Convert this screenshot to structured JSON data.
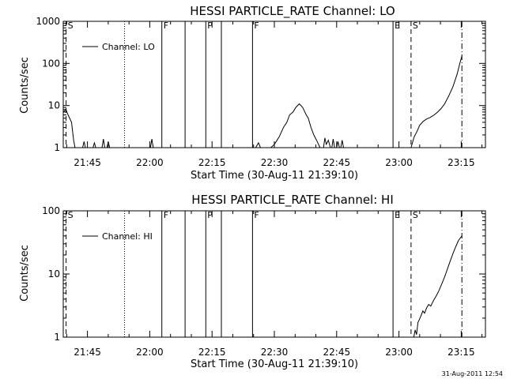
{
  "footer": "31-Aug-2011 12:54",
  "chart_data": [
    {
      "type": "line",
      "title": "HESSI PARTICLE_RATE Channel: LO",
      "xlabel": "Start Time (30-Aug-11 21:39:10)",
      "ylabel": "Counts/sec",
      "y_scale": "log",
      "ylim": [
        1,
        1000
      ],
      "xlim": [
        "21:39:10",
        "23:20:50"
      ],
      "x_ticks": [
        "21:45",
        "22:00",
        "22:15",
        "22:30",
        "22:45",
        "23:00",
        "23:15"
      ],
      "y_ticks": [
        "1",
        "10",
        "100",
        "1000"
      ],
      "legend": {
        "position": "top-left",
        "entries": [
          "Channel: LO"
        ]
      },
      "markers": [
        {
          "time": "21:39:51",
          "label": "S",
          "style": "dashed"
        },
        {
          "time": "21:53:55",
          "label": "",
          "style": "dotted"
        },
        {
          "time": "22:02:55",
          "label": "F",
          "style": "solid"
        },
        {
          "time": "22:08:30",
          "label": "",
          "style": "solid"
        },
        {
          "time": "22:13:30",
          "label": "P",
          "style": "solid"
        },
        {
          "time": "22:17:15",
          "label": "",
          "style": "solid"
        },
        {
          "time": "22:24:45",
          "label": "F",
          "style": "solid"
        },
        {
          "time": "22:58:35",
          "label": "E",
          "style": "solid"
        },
        {
          "time": "23:02:55",
          "label": "S",
          "style": "dashed"
        },
        {
          "time": "23:15:10",
          "label": "",
          "style": "dashdot"
        }
      ],
      "series": [
        {
          "name": "Channel: LO",
          "segments": [
            [
              [
                "21:39:10",
                7
              ],
              [
                "21:39:50",
                8
              ],
              [
                "21:40:20",
                6
              ],
              [
                "21:41:10",
                4
              ],
              [
                "21:41:40",
                1.5
              ],
              [
                "21:42:00",
                1
              ]
            ],
            [
              [
                "21:43:50",
                1
              ],
              [
                "21:44:10",
                1.4
              ],
              [
                "21:44:30",
                1
              ]
            ],
            [
              [
                "21:46:20",
                1
              ],
              [
                "21:46:40",
                1.3
              ],
              [
                "21:47:00",
                1
              ]
            ],
            [
              [
                "21:48:30",
                1
              ],
              [
                "21:48:50",
                1.6
              ],
              [
                "21:49:10",
                1
              ]
            ],
            [
              [
                "21:49:40",
                1
              ],
              [
                "21:50:00",
                1.4
              ],
              [
                "21:50:20",
                1
              ]
            ],
            [
              [
                "22:00:10",
                1
              ],
              [
                "22:00:30",
                1.6
              ],
              [
                "22:00:50",
                1
              ]
            ],
            [
              [
                "22:25:30",
                1
              ],
              [
                "22:26:10",
                1.3
              ],
              [
                "22:26:40",
                1
              ]
            ],
            [
              [
                "22:29:10",
                1
              ],
              [
                "22:30:00",
                1.2
              ],
              [
                "22:31:10",
                1.8
              ],
              [
                "22:32:10",
                3
              ],
              [
                "22:33:00",
                4
              ],
              [
                "22:33:40",
                6
              ],
              [
                "22:34:30",
                7
              ],
              [
                "22:35:10",
                9
              ],
              [
                "22:36:00",
                11
              ],
              [
                "22:36:50",
                9
              ],
              [
                "22:37:40",
                6
              ],
              [
                "22:38:10",
                5
              ],
              [
                "22:38:50",
                3
              ],
              [
                "22:39:30",
                2
              ],
              [
                "22:40:10",
                1.5
              ],
              [
                "22:41:00",
                1
              ]
            ],
            [
              [
                "22:41:50",
                1
              ],
              [
                "22:42:10",
                1.7
              ],
              [
                "22:42:30",
                1.2
              ],
              [
                "22:43:00",
                1.5
              ],
              [
                "22:43:30",
                1
              ]
            ],
            [
              [
                "22:43:50",
                1
              ],
              [
                "22:44:10",
                1.6
              ],
              [
                "22:44:30",
                1
              ]
            ],
            [
              [
                "22:45:00",
                1
              ],
              [
                "22:45:20",
                1.4
              ],
              [
                "22:45:40",
                1
              ]
            ],
            [
              [
                "22:46:00",
                1
              ],
              [
                "22:46:20",
                1.5
              ],
              [
                "22:46:40",
                1
              ]
            ],
            [
              [
                "23:02:55",
                1
              ],
              [
                "23:03:40",
                1.8
              ],
              [
                "23:04:20",
                2.4
              ],
              [
                "23:05:00",
                3.4
              ],
              [
                "23:05:50",
                4.2
              ],
              [
                "23:06:40",
                4.8
              ],
              [
                "23:07:30",
                5.2
              ],
              [
                "23:08:30",
                6
              ],
              [
                "23:09:20",
                7
              ],
              [
                "23:10:10",
                8.5
              ],
              [
                "23:11:00",
                11
              ],
              [
                "23:12:00",
                17
              ],
              [
                "23:13:00",
                28
              ],
              [
                "23:14:00",
                55
              ],
              [
                "23:14:40",
                100
              ],
              [
                "23:15:10",
                150
              ]
            ]
          ]
        }
      ]
    },
    {
      "type": "line",
      "title": "HESSI PARTICLE_RATE Channel: HI",
      "xlabel": "Start Time (30-Aug-11 21:39:10)",
      "ylabel": "Counts/sec",
      "y_scale": "log",
      "ylim": [
        1,
        100
      ],
      "xlim": [
        "21:39:10",
        "23:20:50"
      ],
      "x_ticks": [
        "21:45",
        "22:00",
        "22:15",
        "22:30",
        "22:45",
        "23:00",
        "23:15"
      ],
      "y_ticks": [
        "1",
        "10",
        "100"
      ],
      "legend": {
        "position": "top-left",
        "entries": [
          "Channel: HI"
        ]
      },
      "markers": [
        {
          "time": "21:39:51",
          "label": "S",
          "style": "dashed"
        },
        {
          "time": "21:53:55",
          "label": "",
          "style": "dotted"
        },
        {
          "time": "22:02:55",
          "label": "F",
          "style": "solid"
        },
        {
          "time": "22:08:30",
          "label": "",
          "style": "solid"
        },
        {
          "time": "22:13:30",
          "label": "P",
          "style": "solid"
        },
        {
          "time": "22:17:15",
          "label": "",
          "style": "solid"
        },
        {
          "time": "22:24:45",
          "label": "F",
          "style": "solid"
        },
        {
          "time": "22:58:35",
          "label": "E",
          "style": "solid"
        },
        {
          "time": "23:02:55",
          "label": "S",
          "style": "dashed"
        },
        {
          "time": "23:15:10",
          "label": "",
          "style": "dashdot"
        }
      ],
      "series": [
        {
          "name": "Channel: HI",
          "segments": [
            [
              [
                "23:03:35",
                1
              ],
              [
                "23:03:55",
                1.3
              ],
              [
                "23:04:15",
                1.1
              ],
              [
                "23:04:35",
                1.7
              ],
              [
                "23:04:55",
                1.9
              ],
              [
                "23:05:20",
                2.2
              ],
              [
                "23:05:45",
                2.6
              ],
              [
                "23:06:10",
                2.4
              ],
              [
                "23:06:40",
                2.9
              ],
              [
                "23:07:10",
                3.3
              ],
              [
                "23:07:40",
                3.1
              ],
              [
                "23:08:20",
                3.8
              ],
              [
                "23:09:00",
                4.5
              ],
              [
                "23:09:40",
                5.5
              ],
              [
                "23:10:20",
                7
              ],
              [
                "23:11:00",
                9
              ],
              [
                "23:11:40",
                12
              ],
              [
                "23:12:20",
                16
              ],
              [
                "23:13:00",
                21
              ],
              [
                "23:13:40",
                27
              ],
              [
                "23:14:20",
                34
              ],
              [
                "23:15:10",
                40
              ]
            ]
          ]
        }
      ]
    }
  ]
}
